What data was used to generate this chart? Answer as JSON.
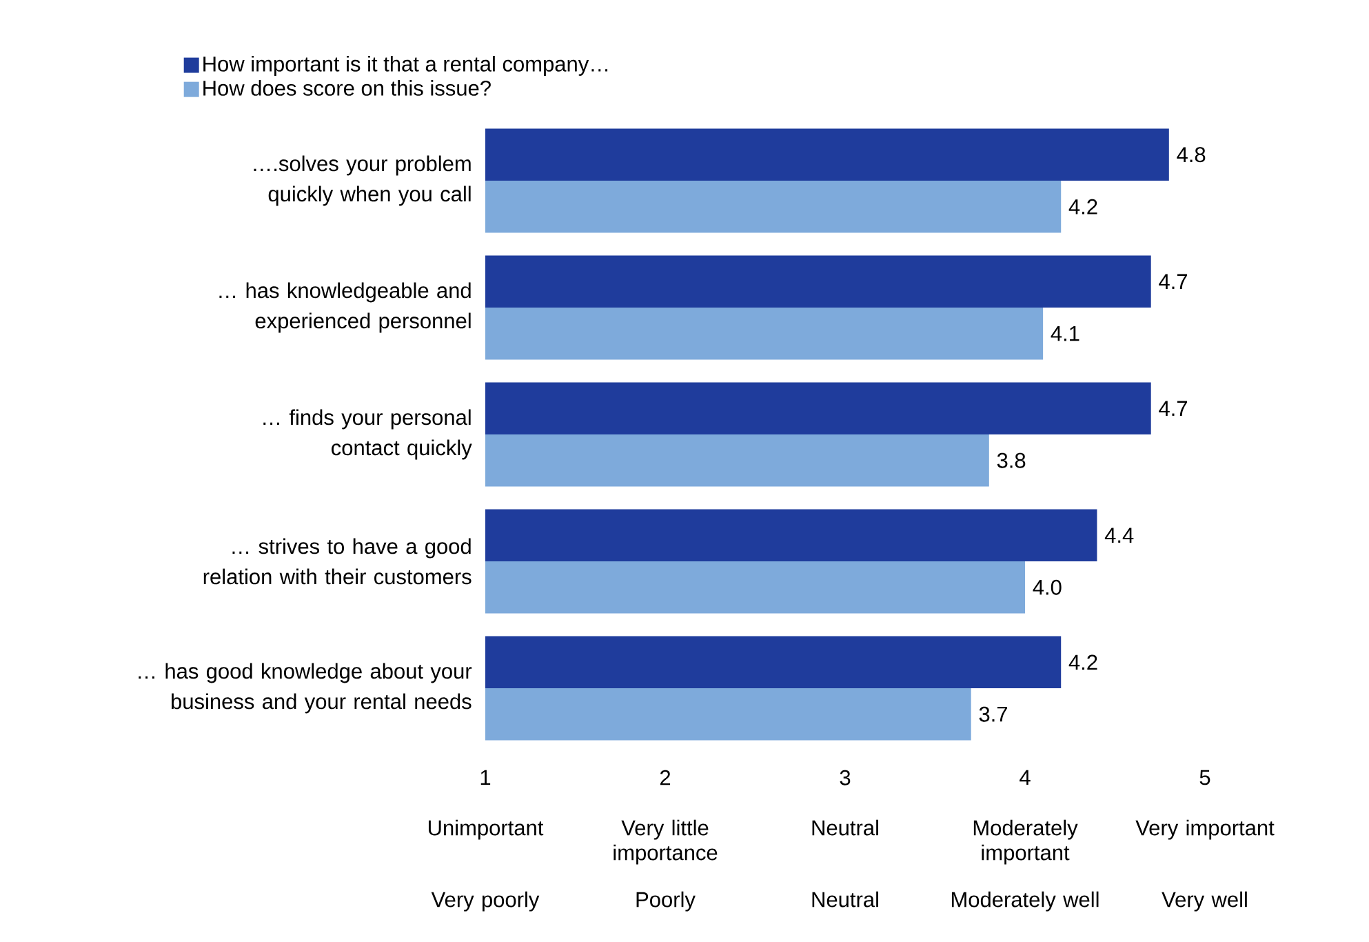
{
  "chart_data": {
    "type": "bar",
    "orientation": "horizontal",
    "categories": [
      "….solves your problem quickly when you call",
      "… has knowledgeable and experienced personnel",
      "… finds your personal contact quickly",
      "… strives to have a good relation with their customers",
      "… has good knowledge about your business and your rental needs"
    ],
    "series": [
      {
        "name": "How important is it that a rental company…",
        "color": "#1f3c9c",
        "values": [
          4.8,
          4.7,
          4.7,
          4.4,
          4.2
        ],
        "value_labels": [
          "4.8",
          "4.7",
          "4.7",
          "4.4",
          "4.2"
        ]
      },
      {
        "name": "How does score on this issue?",
        "color": "#7eaadb",
        "values": [
          4.2,
          4.1,
          3.8,
          4.0,
          3.7
        ],
        "value_labels": [
          "4.2",
          "4.1",
          "3.8",
          "4.0",
          "3.7"
        ]
      }
    ],
    "xlim": [
      1,
      5
    ],
    "xticks": [
      1,
      2,
      3,
      4,
      5
    ],
    "annotations": [
      "Unimportant",
      "Very little importance",
      "Neutral",
      "Moderately important",
      "Very important",
      "Very poorly",
      "Poorly",
      "Neutral",
      "Moderately well",
      "Very well"
    ],
    "legend": "top left",
    "grid": false
  }
}
